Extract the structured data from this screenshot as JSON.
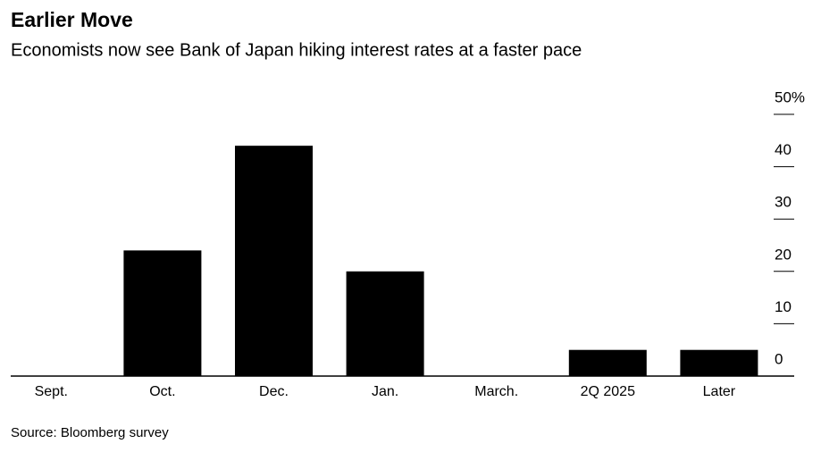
{
  "chart_data": {
    "type": "bar",
    "title": "Earlier Move",
    "subtitle": "Economists now see Bank of Japan hiking interest rates at a faster pace",
    "source": "Source: Bloomberg survey",
    "categories": [
      "Sept.",
      "Oct.",
      "Dec.",
      "Jan.",
      "March.",
      "2Q 2025",
      "Later"
    ],
    "values": [
      0,
      24,
      44,
      20,
      0,
      5,
      5
    ],
    "color": "#000000",
    "ylim": [
      0,
      50
    ],
    "yticks": [
      0,
      10,
      20,
      30,
      40,
      {
        "value": 50,
        "label": "50%"
      }
    ]
  }
}
